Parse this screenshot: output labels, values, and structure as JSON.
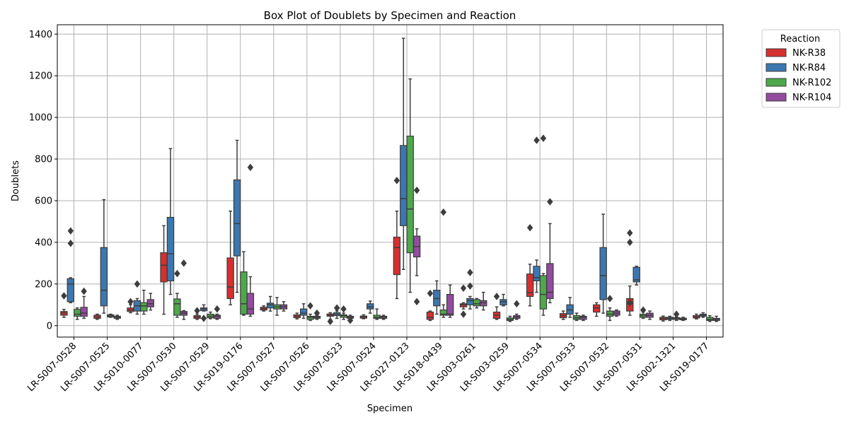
{
  "chart_data": {
    "type": "box",
    "title": "Box Plot of Doublets by Specimen and Reaction",
    "xlabel": "Specimen",
    "ylabel": "Doublets",
    "ylim": [
      -55,
      1445
    ],
    "yticks": [
      0,
      200,
      400,
      600,
      800,
      1000,
      1200,
      1400
    ],
    "grid": true,
    "legend": {
      "title": "Reaction",
      "placement": "outside-right"
    },
    "categories": [
      "LR-S007-0528",
      "LR-S007-0525",
      "LR-S010-0077",
      "LR-S007-0530",
      "LR-S007-0529",
      "LR-S019-0176",
      "LR-S007-0527",
      "LR-S007-0526",
      "LR-S007-0523",
      "LR-S007-0524",
      "LR-S027-0123",
      "LR-S018-0439",
      "LR-S003-0261",
      "LR-S003-0259",
      "LR-S007-0534",
      "LR-S007-0533",
      "LR-S007-0532",
      "LR-S007-0531",
      "LR-S002-1321",
      "LR-S019-0177"
    ],
    "series": [
      {
        "name": "NK-R38",
        "color": "#d62f2f",
        "boxes": [
          {
            "w1": 40,
            "q1": 50,
            "med": 60,
            "q3": 68,
            "w2": 78,
            "fliers": [
              143
            ]
          },
          {
            "w1": 30,
            "q1": 35,
            "med": 42,
            "q3": 50,
            "w2": 55,
            "fliers": []
          },
          {
            "w1": 62,
            "q1": 68,
            "med": 75,
            "q3": 85,
            "w2": 100,
            "fliers": [
              115
            ]
          },
          {
            "w1": 55,
            "q1": 210,
            "med": 290,
            "q3": 350,
            "w2": 480,
            "fliers": []
          },
          {
            "w1": 30,
            "q1": 35,
            "med": 42,
            "q3": 48,
            "w2": 55,
            "fliers": [
              72
            ]
          },
          {
            "w1": 100,
            "q1": 130,
            "med": 185,
            "q3": 325,
            "w2": 550,
            "fliers": []
          },
          {
            "w1": 70,
            "q1": 75,
            "med": 82,
            "q3": 88,
            "w2": 95,
            "fliers": []
          },
          {
            "w1": 32,
            "q1": 38,
            "med": 45,
            "q3": 52,
            "w2": 60,
            "fliers": []
          },
          {
            "w1": 30,
            "q1": 45,
            "med": 50,
            "q3": 56,
            "w2": 62,
            "fliers": [
              20
            ]
          },
          {
            "w1": 33,
            "q1": 36,
            "med": 42,
            "q3": 46,
            "w2": 52,
            "fliers": []
          },
          {
            "w1": 130,
            "q1": 245,
            "med": 375,
            "q3": 425,
            "w2": 550,
            "fliers": [
              697
            ]
          },
          {
            "w1": 25,
            "q1": 30,
            "med": 40,
            "q3": 65,
            "w2": 70,
            "fliers": [
              155
            ]
          },
          {
            "w1": 80,
            "q1": 90,
            "med": 100,
            "q3": 105,
            "w2": 110,
            "fliers": [
              55,
              180
            ]
          },
          {
            "w1": 30,
            "q1": 35,
            "med": 50,
            "q3": 65,
            "w2": 90,
            "fliers": [
              140
            ]
          },
          {
            "w1": 95,
            "q1": 140,
            "med": 158,
            "q3": 248,
            "w2": 295,
            "fliers": [
              470
            ]
          },
          {
            "w1": 30,
            "q1": 38,
            "med": 48,
            "q3": 58,
            "w2": 70,
            "fliers": []
          },
          {
            "w1": 45,
            "q1": 65,
            "med": 85,
            "q3": 100,
            "w2": 110,
            "fliers": []
          },
          {
            "w1": 50,
            "q1": 70,
            "med": 105,
            "q3": 130,
            "w2": 190,
            "fliers": [
              110,
              400,
              445
            ]
          },
          {
            "w1": 22,
            "q1": 28,
            "med": 35,
            "q3": 40,
            "w2": 46,
            "fliers": []
          },
          {
            "w1": 32,
            "q1": 37,
            "med": 43,
            "q3": 48,
            "w2": 55,
            "fliers": []
          }
        ]
      },
      {
        "name": "NK-R84",
        "color": "#3c77b0",
        "boxes": [
          {
            "w1": 110,
            "q1": 115,
            "med": 200,
            "q3": 225,
            "w2": 230,
            "fliers": [
              395,
              455
            ]
          },
          {
            "w1": 60,
            "q1": 95,
            "med": 170,
            "q3": 375,
            "w2": 605,
            "fliers": []
          },
          {
            "w1": 55,
            "q1": 70,
            "med": 95,
            "q3": 120,
            "w2": 130,
            "fliers": [
              200
            ]
          },
          {
            "w1": 150,
            "q1": 215,
            "med": 345,
            "q3": 520,
            "w2": 850,
            "fliers": []
          },
          {
            "w1": 70,
            "q1": 72,
            "med": 80,
            "q3": 85,
            "w2": 100,
            "fliers": [
              35
            ]
          },
          {
            "w1": 160,
            "q1": 335,
            "med": 490,
            "q3": 700,
            "w2": 890,
            "fliers": []
          },
          {
            "w1": 70,
            "q1": 85,
            "med": 100,
            "q3": 108,
            "w2": 140,
            "fliers": []
          },
          {
            "w1": 35,
            "q1": 50,
            "med": 60,
            "q3": 80,
            "w2": 105,
            "fliers": []
          },
          {
            "w1": 35,
            "q1": 48,
            "med": 55,
            "q3": 62,
            "w2": 70,
            "fliers": [
              85
            ]
          },
          {
            "w1": 60,
            "q1": 80,
            "med": 90,
            "q3": 105,
            "w2": 118,
            "fliers": []
          },
          {
            "w1": 270,
            "q1": 480,
            "med": 610,
            "q3": 865,
            "w2": 1380,
            "fliers": []
          },
          {
            "w1": 55,
            "q1": 95,
            "med": 130,
            "q3": 170,
            "w2": 215,
            "fliers": []
          },
          {
            "w1": 80,
            "q1": 100,
            "med": 120,
            "q3": 130,
            "w2": 140,
            "fliers": [
              190,
              255
            ]
          },
          {
            "w1": 95,
            "q1": 100,
            "med": 115,
            "q3": 125,
            "w2": 150,
            "fliers": []
          },
          {
            "w1": 160,
            "q1": 215,
            "med": 230,
            "q3": 285,
            "w2": 315,
            "fliers": [
              890
            ]
          },
          {
            "w1": 40,
            "q1": 55,
            "med": 75,
            "q3": 100,
            "w2": 135,
            "fliers": []
          },
          {
            "w1": 60,
            "q1": 125,
            "med": 240,
            "q3": 375,
            "w2": 535,
            "fliers": []
          },
          {
            "w1": 195,
            "q1": 210,
            "med": 220,
            "q3": 280,
            "w2": 285,
            "fliers": []
          },
          {
            "w1": 25,
            "q1": 30,
            "med": 35,
            "q3": 40,
            "w2": 45,
            "fliers": []
          },
          {
            "w1": 40,
            "q1": 45,
            "med": 50,
            "q3": 55,
            "w2": 62,
            "fliers": []
          }
        ]
      },
      {
        "name": "NK-R102",
        "color": "#4ea84b",
        "boxes": [
          {
            "w1": 30,
            "q1": 45,
            "med": 55,
            "q3": 78,
            "w2": 85,
            "fliers": []
          },
          {
            "w1": 40,
            "q1": 42,
            "med": 47,
            "q3": 52,
            "w2": 55,
            "fliers": []
          },
          {
            "w1": 55,
            "q1": 70,
            "med": 95,
            "q3": 110,
            "w2": 170,
            "fliers": []
          },
          {
            "w1": 40,
            "q1": 50,
            "med": 105,
            "q3": 128,
            "w2": 155,
            "fliers": [
              250
            ]
          },
          {
            "w1": 33,
            "q1": 38,
            "med": 45,
            "q3": 55,
            "w2": 65,
            "fliers": []
          },
          {
            "w1": 50,
            "q1": 55,
            "med": 105,
            "q3": 258,
            "w2": 355,
            "fliers": []
          },
          {
            "w1": 50,
            "q1": 80,
            "med": 90,
            "q3": 100,
            "w2": 135,
            "fliers": []
          },
          {
            "w1": 25,
            "q1": 30,
            "med": 40,
            "q3": 45,
            "w2": 55,
            "fliers": [
              95
            ]
          },
          {
            "w1": 30,
            "q1": 40,
            "med": 48,
            "q3": 52,
            "w2": 60,
            "fliers": [
              80
            ]
          },
          {
            "w1": 30,
            "q1": 35,
            "med": 40,
            "q3": 50,
            "w2": 80,
            "fliers": []
          },
          {
            "w1": 160,
            "q1": 350,
            "med": 560,
            "q3": 910,
            "w2": 1185,
            "fliers": []
          },
          {
            "w1": 40,
            "q1": 50,
            "med": 55,
            "q3": 75,
            "w2": 100,
            "fliers": [
              545
            ]
          },
          {
            "w1": 85,
            "q1": 95,
            "med": 105,
            "q3": 125,
            "w2": 130,
            "fliers": []
          },
          {
            "w1": 20,
            "q1": 25,
            "med": 30,
            "q3": 37,
            "w2": 45,
            "fliers": []
          },
          {
            "w1": 50,
            "q1": 80,
            "med": 150,
            "q3": 240,
            "w2": 250,
            "fliers": [
              900
            ]
          },
          {
            "w1": 25,
            "q1": 30,
            "med": 38,
            "q3": 48,
            "w2": 60,
            "fliers": []
          },
          {
            "w1": 25,
            "q1": 45,
            "med": 55,
            "q3": 70,
            "w2": 85,
            "fliers": [
              130
            ]
          },
          {
            "w1": 35,
            "q1": 40,
            "med": 48,
            "q3": 55,
            "w2": 65,
            "fliers": [
              75
            ]
          },
          {
            "w1": 25,
            "q1": 30,
            "med": 35,
            "q3": 38,
            "w2": 42,
            "fliers": [
              55
            ]
          },
          {
            "w1": 20,
            "q1": 25,
            "med": 30,
            "q3": 40,
            "w2": 48,
            "fliers": []
          }
        ]
      },
      {
        "name": "NK-R104",
        "color": "#924b9e",
        "boxes": [
          {
            "w1": 35,
            "q1": 45,
            "med": 60,
            "q3": 88,
            "w2": 140,
            "fliers": [
              165
            ]
          },
          {
            "w1": 30,
            "q1": 35,
            "med": 40,
            "q3": 45,
            "w2": 50,
            "fliers": []
          },
          {
            "w1": 75,
            "q1": 90,
            "med": 105,
            "q3": 125,
            "w2": 155,
            "fliers": []
          },
          {
            "w1": 30,
            "q1": 50,
            "med": 60,
            "q3": 68,
            "w2": 72,
            "fliers": [
              300
            ]
          },
          {
            "w1": 30,
            "q1": 35,
            "med": 45,
            "q3": 50,
            "w2": 55,
            "fliers": [
              80
            ]
          },
          {
            "w1": 45,
            "q1": 55,
            "med": 80,
            "q3": 155,
            "w2": 235,
            "fliers": [
              760
            ]
          },
          {
            "w1": 70,
            "q1": 80,
            "med": 90,
            "q3": 100,
            "w2": 115,
            "fliers": []
          },
          {
            "w1": 30,
            "q1": 35,
            "med": 40,
            "q3": 45,
            "w2": 50,
            "fliers": [
              60
            ]
          },
          {
            "w1": 30,
            "q1": 35,
            "med": 40,
            "q3": 45,
            "w2": 50,
            "fliers": [
              25
            ]
          },
          {
            "w1": 30,
            "q1": 35,
            "med": 40,
            "q3": 45,
            "w2": 50,
            "fliers": []
          },
          {
            "w1": 240,
            "q1": 330,
            "med": 380,
            "q3": 430,
            "w2": 465,
            "fliers": [
              115,
              650
            ]
          },
          {
            "w1": 40,
            "q1": 50,
            "med": 55,
            "q3": 150,
            "w2": 195,
            "fliers": []
          },
          {
            "w1": 75,
            "q1": 95,
            "med": 110,
            "q3": 120,
            "w2": 160,
            "fliers": []
          },
          {
            "w1": 30,
            "q1": 35,
            "med": 42,
            "q3": 48,
            "w2": 55,
            "fliers": [
              105
            ]
          },
          {
            "w1": 110,
            "q1": 130,
            "med": 160,
            "q3": 298,
            "w2": 490,
            "fliers": [
              595
            ]
          },
          {
            "w1": 25,
            "q1": 30,
            "med": 40,
            "q3": 45,
            "w2": 50,
            "fliers": []
          },
          {
            "w1": 45,
            "q1": 50,
            "med": 60,
            "q3": 70,
            "w2": 75,
            "fliers": []
          },
          {
            "w1": 30,
            "q1": 40,
            "med": 50,
            "q3": 60,
            "w2": 70,
            "fliers": []
          },
          {
            "w1": 25,
            "q1": 28,
            "med": 32,
            "q3": 36,
            "w2": 40,
            "fliers": []
          },
          {
            "w1": 20,
            "q1": 25,
            "med": 30,
            "q3": 35,
            "w2": 45,
            "fliers": []
          }
        ]
      }
    ]
  }
}
